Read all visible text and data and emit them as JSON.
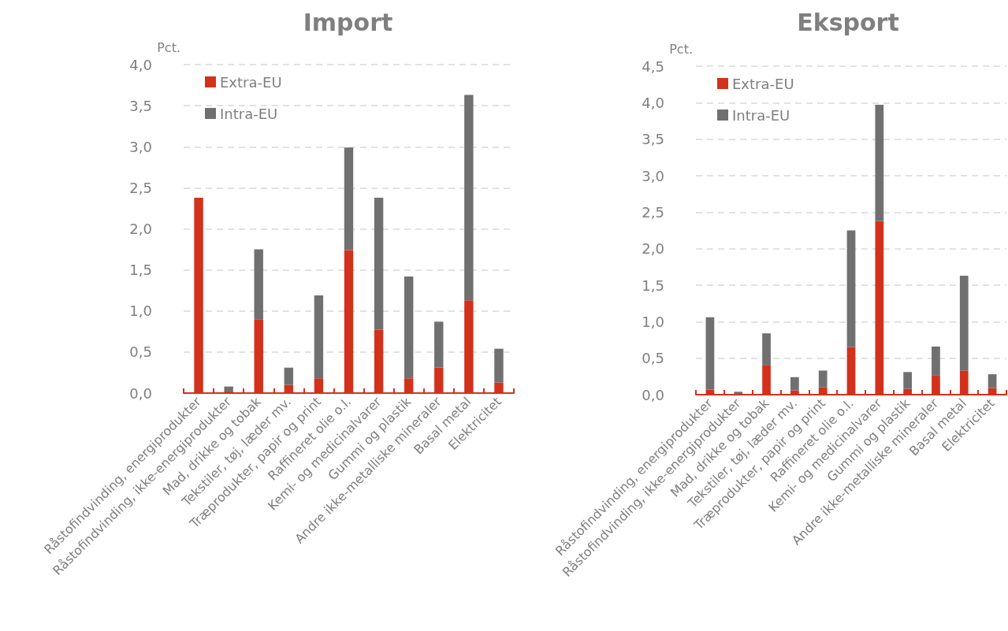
{
  "chart_data": [
    {
      "type": "bar",
      "title": "Import",
      "ylabel": "Pct.",
      "categories": [
        "Råstofindvinding, energiprodukter",
        "Råstofindvinding, ikke-energiprodukter",
        "Mad, drikke og tobak",
        "Tekstiler, tøj, læder mv.",
        "Træprodukter, papir og print",
        "Raffineret olie o.l.",
        "Kemi- og medicinalvarer",
        "Gummi og plastik",
        "Andre ikke-metalliske mineraler",
        "Basal metal",
        "Elektricitet"
      ],
      "stacked": true,
      "series": [
        {
          "name": "Extra-EU",
          "color": "#d2321c",
          "values": [
            2.38,
            0.02,
            0.9,
            0.1,
            0.18,
            1.74,
            0.77,
            0.18,
            0.31,
            1.13,
            0.13
          ]
        },
        {
          "name": "Intra-EU",
          "color": "#707070",
          "values": [
            0,
            0.06,
            0.85,
            0.21,
            1.01,
            1.25,
            1.61,
            1.24,
            0.56,
            2.5,
            0.41
          ]
        }
      ],
      "ylim": [
        0,
        4
      ],
      "yticks": [
        {
          "value": 0,
          "label": "0,0"
        },
        {
          "value": 0.5,
          "label": "0,5"
        },
        {
          "value": 1,
          "label": "1,0"
        },
        {
          "value": 1.5,
          "label": "1,5"
        },
        {
          "value": 2,
          "label": "2,0"
        },
        {
          "value": 2.5,
          "label": "2,5"
        },
        {
          "value": 3,
          "label": "3,0"
        },
        {
          "value": 3.5,
          "label": "3,5"
        },
        {
          "value": 4,
          "label": "4,0"
        }
      ],
      "grid": "y",
      "legend": "top left"
    },
    {
      "type": "bar",
      "title": "Eksport",
      "ylabel": "Pct.",
      "categories": [
        "Råstofindvinding, energiprodukter",
        "Råstofindvinding, ikke-energiprodukter",
        "Mad, drikke og tobak",
        "Tekstiler, tøj, læder mv.",
        "Træprodukter, papir og print",
        "Raffineret olie o.l.",
        "Kemi- og medicinalvarer",
        "Gummi og plastik",
        "Andre ikke-metalliske mineraler",
        "Basal metal",
        "Elektricitet"
      ],
      "stacked": true,
      "series": [
        {
          "name": "Extra-EU",
          "color": "#d2321c",
          "values": [
            0.07,
            0.01,
            0.4,
            0.06,
            0.1,
            0.65,
            2.38,
            0.08,
            0.26,
            0.33,
            0.09
          ]
        },
        {
          "name": "Intra-EU",
          "color": "#707070",
          "values": [
            0.99,
            0.03,
            0.44,
            0.18,
            0.23,
            1.6,
            1.59,
            0.23,
            0.4,
            1.3,
            0.19
          ]
        }
      ],
      "ylim": [
        0,
        4.5
      ],
      "yticks": [
        {
          "value": 0,
          "label": "0,0"
        },
        {
          "value": 0.5,
          "label": "0,5"
        },
        {
          "value": 1,
          "label": "1,0"
        },
        {
          "value": 1.5,
          "label": "1,5"
        },
        {
          "value": 2,
          "label": "2,0"
        },
        {
          "value": 2.5,
          "label": "2,5"
        },
        {
          "value": 3,
          "label": "3,0"
        },
        {
          "value": 3.5,
          "label": "3,5"
        },
        {
          "value": 4,
          "label": "4,0"
        },
        {
          "value": 4.5,
          "label": "4,5"
        }
      ],
      "grid": "y",
      "legend": "top left"
    }
  ]
}
